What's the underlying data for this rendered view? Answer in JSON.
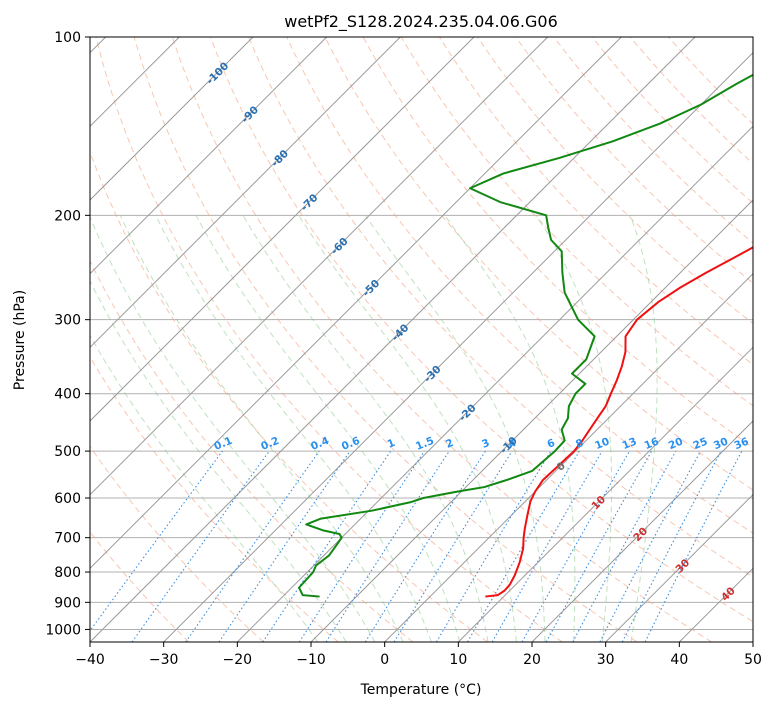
{
  "chart_data": {
    "type": "line",
    "title": "wetPf2_S128.2024.235.04.06.G06",
    "xlabel": "Temperature (°C)",
    "ylabel": "Pressure (hPa)",
    "xlim": [
      -40,
      50
    ],
    "ylim": [
      1050,
      100
    ],
    "y_scale": "log",
    "grid": true,
    "x_ticks": [
      -40,
      -30,
      -20,
      -10,
      0,
      10,
      20,
      30,
      40,
      50
    ],
    "y_ticks": [
      1000,
      900,
      800,
      700,
      600,
      500,
      400,
      300,
      200,
      100
    ],
    "skew": "skew-T",
    "series": [
      {
        "role": "temperature",
        "color": "#ee1111",
        "points": [
          [
            7.5,
            880
          ],
          [
            9,
            875
          ],
          [
            9.3,
            860
          ],
          [
            9.2,
            840
          ],
          [
            8.6,
            810
          ],
          [
            7.5,
            770
          ],
          [
            6.1,
            730
          ],
          [
            4.7,
            700
          ],
          [
            3.6,
            675
          ],
          [
            2.1,
            640
          ],
          [
            0.7,
            608
          ],
          [
            0,
            585
          ],
          [
            -0.5,
            560
          ],
          [
            -0.2,
            500
          ],
          [
            -0.5,
            480
          ],
          [
            -1,
            460
          ],
          [
            -1.5,
            440
          ],
          [
            -2,
            420
          ],
          [
            -3,
            400
          ],
          [
            -4,
            380
          ],
          [
            -5.2,
            360
          ],
          [
            -6.7,
            340
          ],
          [
            -8.8,
            320
          ],
          [
            -9.5,
            300
          ],
          [
            -9,
            280
          ],
          [
            -8,
            265
          ],
          [
            -6.5,
            250
          ],
          [
            -4,
            230
          ],
          [
            -1.5,
            210
          ],
          [
            1,
            200
          ],
          [
            2.9,
            190
          ],
          [
            3.5,
            180
          ],
          [
            4.4,
            165
          ],
          [
            4.3,
            150
          ],
          [
            4.1,
            140
          ],
          [
            4.4,
            130
          ],
          [
            5,
            120
          ],
          [
            4.9,
            110
          ],
          [
            5.3,
            100
          ]
        ]
      },
      {
        "role": "dewpoint",
        "color": "#118811",
        "points": [
          [
            -15,
            880
          ],
          [
            -17.5,
            875
          ],
          [
            -19,
            850
          ],
          [
            -19.2,
            800
          ],
          [
            -19.7,
            780
          ],
          [
            -19.3,
            750
          ],
          [
            -19.7,
            720
          ],
          [
            -20,
            700
          ],
          [
            -20.8,
            690
          ],
          [
            -23.6,
            680
          ],
          [
            -26.6,
            665
          ],
          [
            -25.4,
            650
          ],
          [
            -19.5,
            630
          ],
          [
            -15.5,
            610
          ],
          [
            -14.3,
            600
          ],
          [
            -10.5,
            585
          ],
          [
            -7.5,
            575
          ],
          [
            -5.5,
            560
          ],
          [
            -3.2,
            540
          ],
          [
            -2.8,
            500
          ],
          [
            -2.9,
            480
          ],
          [
            -4.8,
            460
          ],
          [
            -5.5,
            440
          ],
          [
            -7,
            420
          ],
          [
            -7.8,
            400
          ],
          [
            -7.8,
            385
          ],
          [
            -11,
            370
          ],
          [
            -11,
            350
          ],
          [
            -13,
            320
          ],
          [
            -17.5,
            300
          ],
          [
            -23,
            270
          ],
          [
            -26,
            250
          ],
          [
            -29,
            230
          ],
          [
            -32,
            220
          ],
          [
            -34,
            210
          ],
          [
            -36,
            200
          ],
          [
            -44,
            190
          ],
          [
            -50,
            180
          ],
          [
            -47.5,
            170
          ],
          [
            -42,
            160
          ],
          [
            -37,
            150
          ],
          [
            -33,
            140
          ],
          [
            -30,
            130
          ],
          [
            -28,
            120
          ],
          [
            -25.5,
            110
          ],
          [
            -24,
            100
          ]
        ]
      }
    ],
    "dry_adiabats_c": [
      -30,
      -20,
      -10,
      0,
      10,
      20,
      30,
      40,
      50,
      60,
      70,
      80,
      90,
      100,
      110,
      120,
      130,
      140,
      150,
      160,
      170
    ],
    "moist_adiabats_c": [
      -12,
      -8,
      -4,
      0,
      4,
      8,
      12,
      16,
      20,
      24,
      28,
      32
    ],
    "mixing_ratio_lines": [
      "0.1",
      "0.2",
      "0.4",
      "0.6",
      "1",
      "1.5",
      "2",
      "3",
      "4",
      "6",
      "8",
      "10",
      "13",
      "16",
      "20",
      "25",
      "30",
      "36"
    ],
    "isotherm_labels_blue": [
      "-100",
      "-90",
      "-80",
      "-70",
      "-60",
      "-50",
      "-40",
      "-30",
      "-20",
      "-10"
    ],
    "isotherm_labels_red": [
      "0",
      "10",
      "20",
      "30",
      "40"
    ]
  }
}
